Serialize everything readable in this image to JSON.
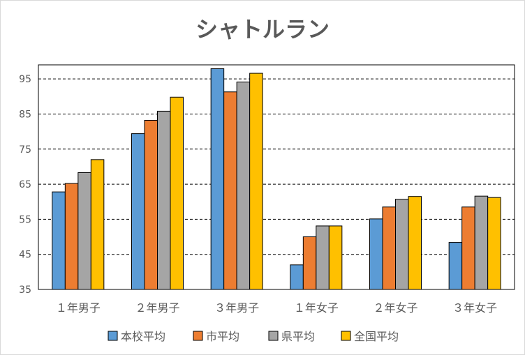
{
  "chart_data": {
    "type": "bar",
    "title": "シャトルラン",
    "categories": [
      "１年男子",
      "２年男子",
      "３年男子",
      "１年女子",
      "２年女子",
      "３年女子"
    ],
    "series": [
      {
        "name": "本校平均",
        "color": "#5b9bd5",
        "values": [
          62.8,
          79.4,
          97.9,
          42.0,
          55.1,
          48.4
        ]
      },
      {
        "name": "市平均",
        "color": "#ed7d31",
        "values": [
          65.2,
          83.2,
          91.3,
          50.0,
          58.5,
          58.5
        ]
      },
      {
        "name": "県平均",
        "color": "#a5a5a5",
        "values": [
          68.3,
          85.8,
          94.1,
          53.1,
          60.7,
          61.6
        ]
      },
      {
        "name": "全国平均",
        "color": "#ffc000",
        "values": [
          72.0,
          89.8,
          96.6,
          53.1,
          61.5,
          61.2
        ]
      }
    ],
    "ylim": [
      35,
      99
    ],
    "yticks": [
      35,
      45,
      55,
      65,
      75,
      85,
      95
    ],
    "grid": "dashed-horizontal",
    "legend": "bottom"
  }
}
